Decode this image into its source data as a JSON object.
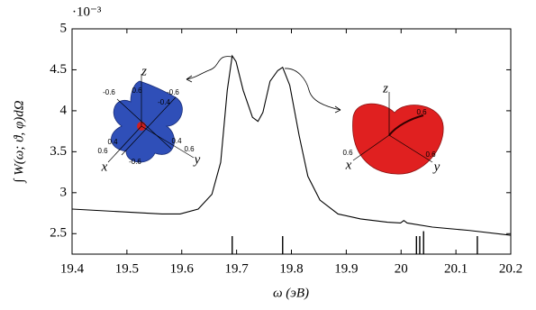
{
  "chart_data": {
    "type": "line",
    "x_label": "ω (эВ)",
    "y_label": "∫ W(ω; ϑ, φ)dΩ",
    "y_multiplier": "·10⁻³",
    "xlim": [
      19.4,
      20.2
    ],
    "ylim": [
      2.25,
      5
    ],
    "xticks": [
      19.4,
      19.5,
      19.6,
      19.7,
      19.8,
      19.9,
      20,
      20.1,
      20.2
    ],
    "yticks": [
      2.5,
      3,
      3.5,
      4,
      4.5,
      5
    ],
    "series": [
      {
        "color": "#000000",
        "x": [
          19.4,
          19.564,
          19.597,
          19.63,
          19.655,
          19.671,
          19.683,
          19.692,
          19.699,
          19.712,
          19.729,
          19.739,
          19.748,
          19.761,
          19.775,
          19.784,
          19.797,
          19.814,
          19.83,
          19.852,
          19.885,
          19.926,
          19.975,
          19.999,
          20.005,
          20.011,
          20.057,
          20.123,
          20.2
        ],
        "values": [
          2.8,
          2.74,
          2.74,
          2.8,
          2.98,
          3.37,
          4.25,
          4.67,
          4.6,
          4.25,
          3.92,
          3.87,
          3.98,
          4.36,
          4.49,
          4.53,
          4.31,
          3.7,
          3.2,
          2.91,
          2.74,
          2.68,
          2.64,
          2.63,
          2.66,
          2.63,
          2.58,
          2.54,
          2.48
        ]
      }
    ],
    "sticks": {
      "color": "#000000",
      "x": [
        19.692,
        19.784,
        20.028,
        20.034,
        20.041,
        20.139
      ],
      "values": [
        2.47,
        2.47,
        2.47,
        2.47,
        2.53,
        2.47
      ]
    },
    "insets": [
      {
        "color": "#2f4fb8",
        "labels": [
          "z",
          "0.6",
          "-0.6",
          "-0.6",
          "-0.4",
          "0.4",
          "0.6",
          "x",
          "-0.6",
          "0.4",
          "0.6",
          "y"
        ]
      },
      {
        "color": "#e02020",
        "labels": [
          "z",
          "0.6",
          "0.6",
          "x",
          "0.6",
          "y"
        ]
      }
    ]
  }
}
